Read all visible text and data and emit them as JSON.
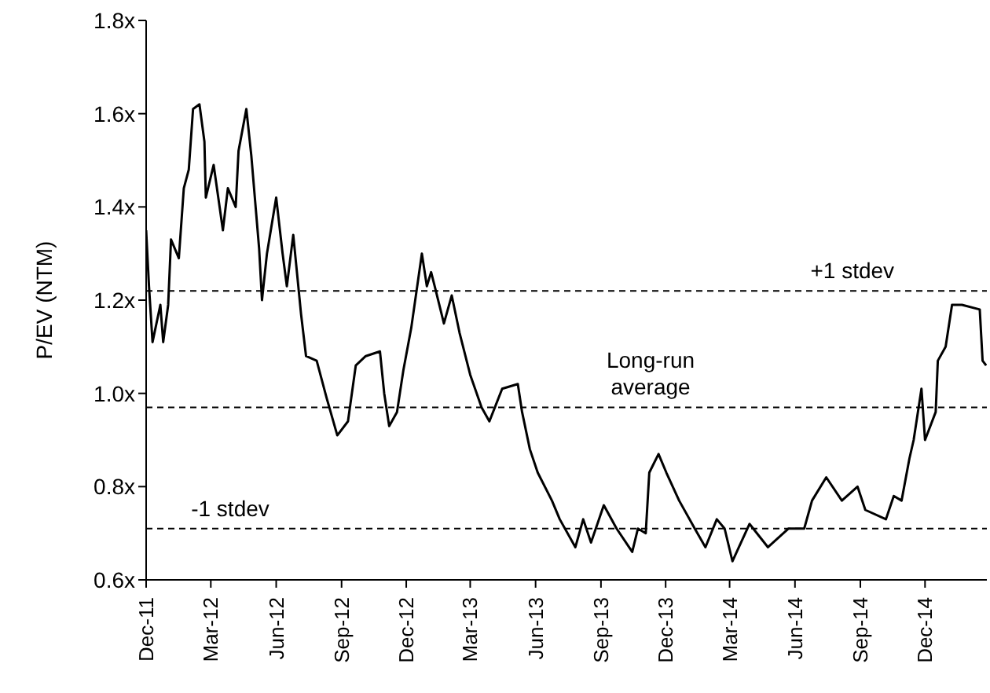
{
  "chart_data": {
    "type": "line",
    "ylabel": "P/EV (NTM)",
    "x": [
      "2011-12-01",
      "2011-12-05",
      "2011-12-10",
      "2011-12-21",
      "2011-12-25",
      "2012-01-01",
      "2012-01-05",
      "2012-01-16",
      "2012-01-23",
      "2012-01-30",
      "2012-02-05",
      "2012-02-14",
      "2012-02-21",
      "2012-02-23",
      "2012-03-05",
      "2012-03-18",
      "2012-03-25",
      "2012-04-05",
      "2012-04-09",
      "2012-04-20",
      "2012-04-27",
      "2012-05-08",
      "2012-05-12",
      "2012-05-19",
      "2012-06-01",
      "2012-06-10",
      "2012-06-16",
      "2012-06-25",
      "2012-07-06",
      "2012-07-13",
      "2012-07-28",
      "2012-08-11",
      "2012-08-26",
      "2012-09-10",
      "2012-09-21",
      "2012-10-05",
      "2012-10-25",
      "2012-10-31",
      "2012-11-07",
      "2012-11-18",
      "2012-11-27",
      "2012-12-08",
      "2012-12-23",
      "2012-12-30",
      "2013-01-05",
      "2013-01-10",
      "2013-01-23",
      "2013-02-03",
      "2013-02-14",
      "2013-03-01",
      "2013-03-17",
      "2013-03-28",
      "2013-04-15",
      "2013-05-07",
      "2013-05-13",
      "2013-05-24",
      "2013-06-04",
      "2013-06-24",
      "2013-07-05",
      "2013-07-27",
      "2013-08-07",
      "2013-08-18",
      "2013-09-05",
      "2013-09-23",
      "2013-10-15",
      "2013-10-23",
      "2013-11-03",
      "2013-11-08",
      "2013-11-21",
      "2013-12-02",
      "2013-12-20",
      "2014-01-11",
      "2014-01-26",
      "2014-02-11",
      "2014-02-22",
      "2014-03-05",
      "2014-03-29",
      "2014-04-24",
      "2014-05-23",
      "2014-06-14",
      "2014-06-25",
      "2014-07-15",
      "2014-08-06",
      "2014-08-28",
      "2014-09-08",
      "2014-10-07",
      "2014-10-18",
      "2014-10-29",
      "2014-11-09",
      "2014-11-15",
      "2014-11-26",
      "2014-12-01",
      "2014-12-16",
      "2014-12-19",
      "2014-12-30",
      "2015-01-08",
      "2015-01-22",
      "2015-02-16",
      "2015-02-20",
      "2015-02-25"
    ],
    "series": [
      {
        "color": "#000000",
        "values": [
          1.35,
          1.23,
          1.11,
          1.19,
          1.11,
          1.19,
          1.33,
          1.29,
          1.44,
          1.48,
          1.61,
          1.62,
          1.54,
          1.42,
          1.49,
          1.35,
          1.44,
          1.4,
          1.52,
          1.61,
          1.51,
          1.31,
          1.2,
          1.3,
          1.42,
          1.3,
          1.23,
          1.34,
          1.17,
          1.08,
          1.07,
          0.99,
          0.91,
          0.94,
          1.06,
          1.08,
          1.09,
          1.0,
          0.93,
          0.96,
          1.05,
          1.14,
          1.3,
          1.23,
          1.26,
          1.23,
          1.15,
          1.21,
          1.13,
          1.04,
          0.97,
          0.94,
          1.01,
          1.02,
          0.96,
          0.88,
          0.83,
          0.77,
          0.73,
          0.67,
          0.73,
          0.68,
          0.76,
          0.71,
          0.66,
          0.71,
          0.7,
          0.83,
          0.87,
          0.83,
          0.77,
          0.71,
          0.67,
          0.73,
          0.71,
          0.64,
          0.72,
          0.67,
          0.71,
          0.71,
          0.77,
          0.82,
          0.77,
          0.8,
          0.75,
          0.73,
          0.78,
          0.77,
          0.86,
          0.9,
          1.01,
          0.9,
          0.96,
          1.07,
          1.1,
          1.19,
          1.19,
          1.18,
          1.07,
          1.06
        ]
      }
    ],
    "xlim": [
      "2011-12-01",
      "2015-02-26"
    ],
    "xticks": [
      {
        "value": "2011-12-01",
        "label": "Dec-11"
      },
      {
        "value": "2012-03-01",
        "label": "Mar-12"
      },
      {
        "value": "2012-06-01",
        "label": "Jun-12"
      },
      {
        "value": "2012-09-01",
        "label": "Sep-12"
      },
      {
        "value": "2012-12-01",
        "label": "Dec-12"
      },
      {
        "value": "2013-03-01",
        "label": "Mar-13"
      },
      {
        "value": "2013-06-01",
        "label": "Jun-13"
      },
      {
        "value": "2013-09-01",
        "label": "Sep-13"
      },
      {
        "value": "2013-12-01",
        "label": "Dec-13"
      },
      {
        "value": "2014-03-01",
        "label": "Mar-14"
      },
      {
        "value": "2014-06-01",
        "label": "Jun-14"
      },
      {
        "value": "2014-09-01",
        "label": "Sep-14"
      },
      {
        "value": "2014-12-01",
        "label": "Dec-14"
      }
    ],
    "ylim": [
      0.6,
      1.8
    ],
    "yticks": [
      {
        "value": 0.6,
        "label": "0.6x"
      },
      {
        "value": 0.8,
        "label": "0.8x"
      },
      {
        "value": 1.0,
        "label": "1.0x"
      },
      {
        "value": 1.2,
        "label": "1.2x"
      },
      {
        "value": 1.4,
        "label": "1.4x"
      },
      {
        "value": 1.6,
        "label": "1.6x"
      },
      {
        "value": 1.8,
        "label": "1.8x"
      }
    ],
    "ref_lines": [
      {
        "axis": "y",
        "value": 1.22,
        "label": "+1 stdev",
        "color": "#000000",
        "line_style": "dashed"
      },
      {
        "axis": "y",
        "value": 0.97,
        "label": "Long-run average",
        "color": "#000000",
        "line_style": "dashed"
      },
      {
        "axis": "y",
        "value": 0.71,
        "label": "-1 stdev",
        "color": "#000000",
        "line_style": "dashed"
      }
    ],
    "grid": false,
    "legend": false,
    "marker": "none",
    "line_style": "solid"
  }
}
